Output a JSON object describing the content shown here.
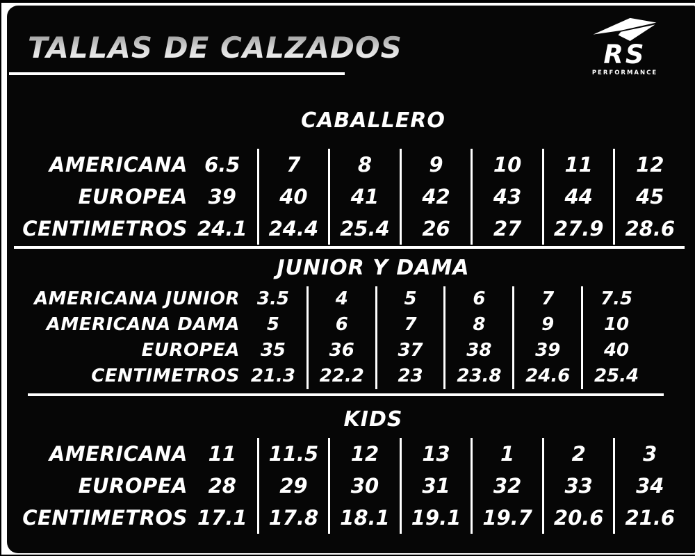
{
  "page_title": "TALLAS DE CALZADOS",
  "brand": {
    "name": "RS",
    "tagline": "PERFORMANCE",
    "icon": "swoosh-icon"
  },
  "colors": {
    "panel_background": "#060606",
    "frame": "#ffffff",
    "text": "#ffffff",
    "divider": "#ffffff",
    "title_gradient_top": "#8f8f8f",
    "title_gradient_bottom": "#ffffff"
  },
  "sections": [
    {
      "id": "caballero",
      "title": "CABALLERO",
      "rows": [
        {
          "label": "AMERICANA",
          "values": [
            "6.5",
            "7",
            "8",
            "9",
            "10",
            "11",
            "12"
          ]
        },
        {
          "label": "EUROPEA",
          "values": [
            "39",
            "40",
            "41",
            "42",
            "43",
            "44",
            "45"
          ]
        },
        {
          "label": "CENTIMETROS",
          "values": [
            "24.1",
            "24.4",
            "25.4",
            "26",
            "27",
            "27.9",
            "28.6"
          ]
        }
      ]
    },
    {
      "id": "junior-y-dama",
      "title": "JUNIOR Y DAMA",
      "rows": [
        {
          "label": "AMERICANA JUNIOR",
          "values": [
            "3.5",
            "4",
            "5",
            "6",
            "7",
            "7.5"
          ]
        },
        {
          "label": "AMERICANA DAMA",
          "values": [
            "5",
            "6",
            "7",
            "8",
            "9",
            "10"
          ]
        },
        {
          "label": "EUROPEA",
          "values": [
            "35",
            "36",
            "37",
            "38",
            "39",
            "40"
          ]
        },
        {
          "label": "CENTIMETROS",
          "values": [
            "21.3",
            "22.2",
            "23",
            "23.8",
            "24.6",
            "25.4"
          ]
        }
      ]
    },
    {
      "id": "kids",
      "title": "KIDS",
      "rows": [
        {
          "label": "AMERICANA",
          "values": [
            "11",
            "11.5",
            "12",
            "13",
            "1",
            "2",
            "3"
          ]
        },
        {
          "label": "EUROPEA",
          "values": [
            "28",
            "29",
            "30",
            "31",
            "32",
            "33",
            "34"
          ]
        },
        {
          "label": "CENTIMETROS",
          "values": [
            "17.1",
            "17.8",
            "18.1",
            "19.1",
            "19.7",
            "20.6",
            "21.6"
          ]
        }
      ]
    }
  ],
  "chart_data": [
    {
      "type": "table",
      "title": "CABALLERO",
      "row_headers": [
        "AMERICANA",
        "EUROPEA",
        "CENTIMETROS"
      ],
      "rows": [
        [
          6.5,
          7,
          8,
          9,
          10,
          11,
          12
        ],
        [
          39,
          40,
          41,
          42,
          43,
          44,
          45
        ],
        [
          24.1,
          24.4,
          25.4,
          26,
          27,
          27.9,
          28.6
        ]
      ]
    },
    {
      "type": "table",
      "title": "JUNIOR Y DAMA",
      "row_headers": [
        "AMERICANA JUNIOR",
        "AMERICANA DAMA",
        "EUROPEA",
        "CENTIMETROS"
      ],
      "rows": [
        [
          3.5,
          4,
          5,
          6,
          7,
          7.5
        ],
        [
          5,
          6,
          7,
          8,
          9,
          10
        ],
        [
          35,
          36,
          37,
          38,
          39,
          40
        ],
        [
          21.3,
          22.2,
          23,
          23.8,
          24.6,
          25.4
        ]
      ]
    },
    {
      "type": "table",
      "title": "KIDS",
      "row_headers": [
        "AMERICANA",
        "EUROPEA",
        "CENTIMETROS"
      ],
      "rows": [
        [
          11,
          11.5,
          12,
          13,
          1,
          2,
          3
        ],
        [
          28,
          29,
          30,
          31,
          32,
          33,
          34
        ],
        [
          17.1,
          17.8,
          18.1,
          19.1,
          19.7,
          20.6,
          21.6
        ]
      ]
    }
  ]
}
